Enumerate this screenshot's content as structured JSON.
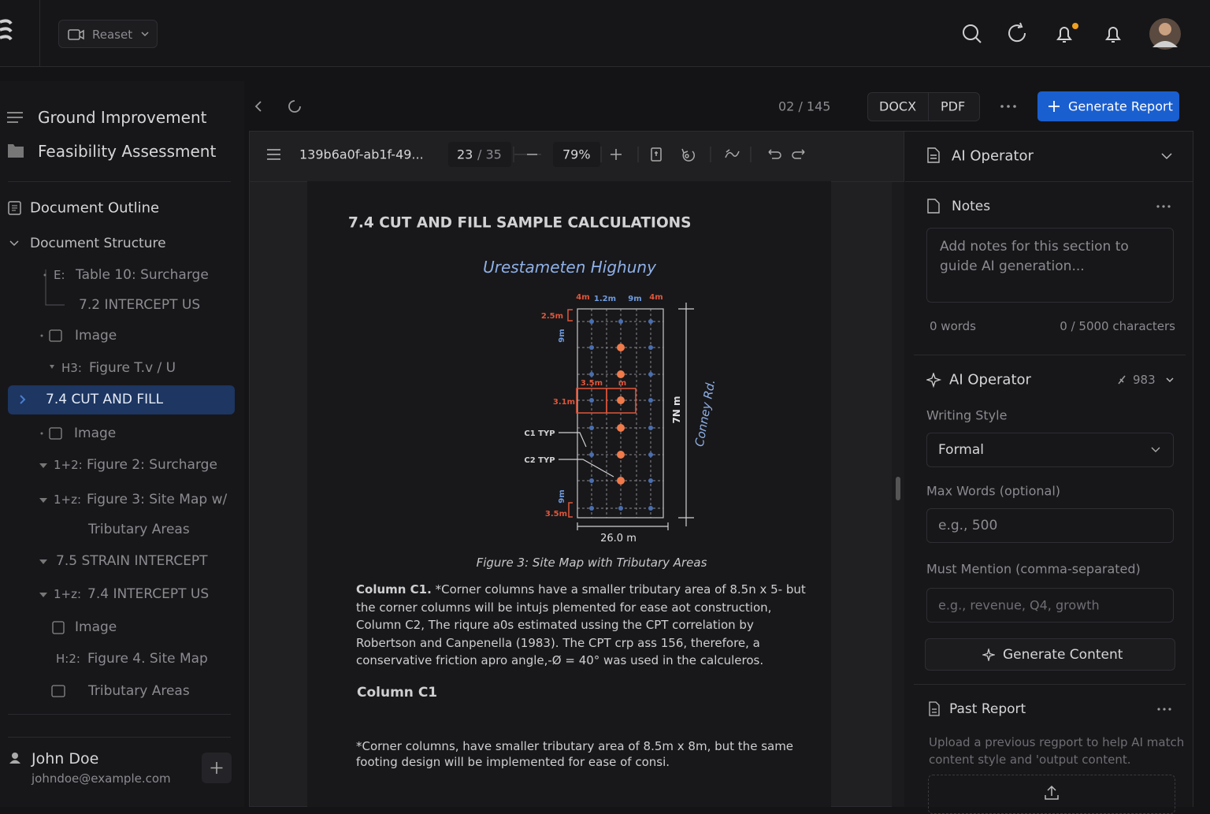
{
  "topbar": {
    "preset": "Reaset"
  },
  "sidebar": {
    "project_title": "Ground Improvement",
    "project_subtitle": "Feasibility Assessment",
    "outline_title": "Document Outline",
    "structure_title": "Document Structure",
    "items": [
      {
        "prefix": "E:",
        "label": "Table 10: Surcharge"
      },
      {
        "label": "7.2 INTERCEPT US"
      },
      {
        "label": "Image"
      },
      {
        "prefix": "H3:",
        "label": "Figure T.v / U"
      },
      {
        "label": "7.4 CUT AND FILL"
      },
      {
        "label": "Image"
      },
      {
        "prefix": "1+2:",
        "label": "Figure 2: Surcharge"
      },
      {
        "prefix": "1+z:",
        "label": "Figure 3: Site Map w/",
        "label_continued": "Tributary Areas"
      },
      {
        "label": "7.5 STRAIN INTERCEPT"
      },
      {
        "prefix": "1+z:",
        "label": "7.4 INTERCEPT US"
      },
      {
        "label": "Image"
      },
      {
        "prefix": "H:2:",
        "label": "Figure 4. Site Map"
      },
      {
        "label": "Tributary Areas"
      }
    ],
    "user": {
      "name": "John Doe",
      "email": "johndoe@example.com"
    }
  },
  "toolbar": {
    "page_counter": "02 / 145",
    "formats": [
      "DOCX",
      "PDF"
    ],
    "generate_button": "Generate Report"
  },
  "viewer_toolbar": {
    "file_name": "139b6a0f-ab1f-49...",
    "page_current": "23",
    "page_total": "/ 35",
    "zoom": "79%"
  },
  "document": {
    "heading": "7.4 CUT AND FILL SAMPLE CALCULATIONS",
    "figure": {
      "title": "Urestameten Highuny",
      "labels": [
        "4m",
        "1.2m",
        "9m",
        "4m",
        "2.5m",
        "9m",
        "3.5m",
        "m",
        "3.1m",
        "C1 TYP",
        "C2 TYP",
        "7N m",
        "9m",
        "3.5m",
        "26.0 m",
        "Conney Rd."
      ]
    },
    "caption": "Figure 3: Site Map with Tributary Areas",
    "paragraph_lead": "Column C1.",
    "paragraph": "*Corner columns have a smaller tributary area of 8.5n x 5- but the corner columns will be intujs plemented for ease aot construction, Column C2, The riqure a0s estimated ussing the CPT correlation by Robertson and Canpenella (1983). The CPT crp ass 156, therefore, a conservative friction apro angle,-Ø = 40° was used in the calculeros.",
    "subheading": "Column C1",
    "paragraph2": "*Corner columns, have smaller tributary area of 8.5m x 8m, but the same footing design will be implemented for ease of consi."
  },
  "right_panel": {
    "header": "AI Operator",
    "notes": {
      "title": "Notes",
      "placeholder": "Add notes for this section to guide AI generation...",
      "words": "0 words",
      "characters": "0 / 5000 characters"
    },
    "ai_operator": {
      "title": "AI Operator",
      "credits": "983",
      "writing_style_label": "Writing Style",
      "writing_style_value": "Formal",
      "max_words_label": "Max Words (optional)",
      "max_words_placeholder": "e.g., 500",
      "must_mention_label": "Must Mention (comma-separated)",
      "must_mention_placeholder": "e.g., revenue, Q4, growth",
      "generate_button": "Generate Content"
    },
    "past_report": {
      "title": "Past Report",
      "description": "Upload a previous regport to help AI match content style and 'output content."
    }
  }
}
